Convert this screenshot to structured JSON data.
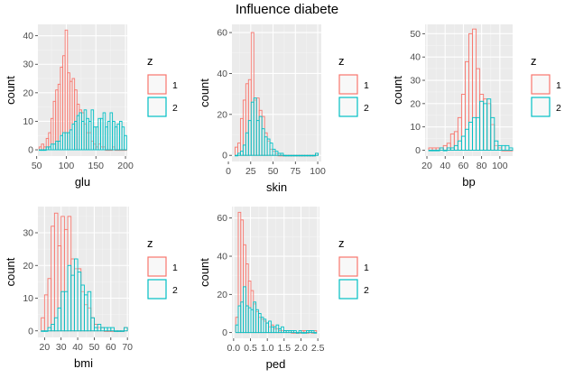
{
  "title": "Influence diabete",
  "colors": {
    "panel": "#EBEBEB",
    "grid_major": "#FFFFFF",
    "grid_minor": "#F4F4F4",
    "z1": "#F8766D",
    "z2": "#00BFC4",
    "legend_fill": "#F8F8F8",
    "tick_text": "#4D4D4D"
  },
  "chart_data": [
    {
      "type": "bar",
      "xlabel": "glu",
      "ylabel": "count",
      "legend": {
        "title": "z",
        "position": "right",
        "entries": [
          "1",
          "2"
        ]
      },
      "grid": true,
      "xlim": [
        52,
        203
      ],
      "ylim": [
        -2.2,
        44
      ],
      "xticks": [
        50,
        100,
        150,
        200
      ],
      "yticks": [
        0,
        10,
        20,
        30,
        40
      ],
      "x": [
        56,
        60,
        64,
        68,
        72,
        76,
        80,
        84,
        88,
        92,
        96,
        100,
        104,
        108,
        112,
        116,
        120,
        124,
        128,
        132,
        136,
        140,
        144,
        148,
        152,
        156,
        160,
        164,
        168,
        172,
        176,
        180,
        184,
        188,
        192,
        196,
        200
      ],
      "series": [
        {
          "name": "1",
          "values": [
            1,
            2,
            1,
            4,
            6,
            11,
            17,
            21,
            23,
            29,
            33,
            42,
            27,
            24,
            25,
            21,
            16,
            14,
            13,
            9,
            6,
            6,
            3,
            2,
            1,
            2,
            1,
            1,
            0,
            0,
            0,
            1,
            0,
            0,
            0,
            0,
            0
          ]
        },
        {
          "name": "2",
          "values": [
            0,
            0,
            0,
            1,
            1,
            2,
            2,
            3,
            3,
            5,
            6,
            6,
            6,
            7,
            9,
            10,
            12,
            13,
            10,
            14,
            11,
            10,
            14,
            8,
            8,
            11,
            11,
            13,
            8,
            10,
            13,
            10,
            8,
            9,
            10,
            8,
            5
          ]
        }
      ]
    },
    {
      "type": "bar",
      "xlabel": "skin",
      "ylabel": "count",
      "legend": {
        "title": "z",
        "position": "right",
        "entries": [
          "1",
          "2"
        ]
      },
      "grid": true,
      "xlim": [
        4,
        104
      ],
      "ylim": [
        -3,
        64
      ],
      "xticks": [
        0,
        25,
        50,
        75,
        100
      ],
      "yticks": [
        0,
        20,
        40,
        60
      ],
      "x": [
        9,
        12,
        15,
        18,
        21,
        24,
        27,
        30,
        33,
        36,
        39,
        42,
        45,
        48,
        51,
        54,
        57,
        60,
        63,
        66,
        69,
        72,
        75,
        78,
        81,
        84,
        87,
        90,
        93,
        96,
        99
      ],
      "series": [
        {
          "name": "1",
          "values": [
            4,
            6,
            18,
            27,
            35,
            37,
            60,
            27,
            28,
            22,
            19,
            11,
            7,
            3,
            2,
            1,
            0,
            0,
            0,
            0,
            0,
            0,
            0,
            0,
            0,
            0,
            0,
            0,
            0,
            0,
            1
          ]
        },
        {
          "name": "2",
          "values": [
            0,
            1,
            2,
            5,
            11,
            17,
            26,
            28,
            17,
            19,
            13,
            9,
            8,
            6,
            3,
            2,
            1,
            1,
            0,
            0,
            0,
            0,
            0,
            0,
            0,
            0,
            0,
            0,
            0,
            0,
            1
          ]
        }
      ]
    },
    {
      "type": "bar",
      "xlabel": "bp",
      "ylabel": "count",
      "legend": {
        "title": "z",
        "position": "right",
        "entries": [
          "1",
          "2"
        ]
      },
      "grid": true,
      "xlim": [
        18,
        114
      ],
      "ylim": [
        -2.5,
        54
      ],
      "xticks": [
        20,
        40,
        60,
        80,
        100
      ],
      "yticks": [
        0,
        10,
        20,
        30,
        40,
        50
      ],
      "x": [
        24,
        28,
        32,
        36,
        40,
        44,
        48,
        52,
        56,
        60,
        64,
        68,
        72,
        76,
        80,
        84,
        88,
        92,
        96,
        100,
        104,
        108,
        112
      ],
      "series": [
        {
          "name": "1",
          "values": [
            1,
            1,
            1,
            1,
            2,
            3,
            7,
            8,
            14,
            24,
            38,
            50,
            52,
            35,
            24,
            22,
            20,
            11,
            2,
            1,
            0,
            0,
            0
          ]
        },
        {
          "name": "2",
          "values": [
            0,
            0,
            0,
            1,
            0,
            1,
            1,
            2,
            4,
            6,
            9,
            12,
            14,
            14,
            21,
            20,
            22,
            14,
            4,
            2,
            2,
            2,
            1
          ]
        }
      ]
    },
    {
      "type": "bar",
      "xlabel": "bmi",
      "ylabel": "count",
      "legend": {
        "title": "z",
        "position": "right",
        "entries": [
          "1",
          "2"
        ]
      },
      "grid": true,
      "xlim": [
        16,
        71
      ],
      "ylim": [
        -2,
        38
      ],
      "xticks": [
        20,
        30,
        40,
        50,
        60,
        70
      ],
      "yticks": [
        0,
        10,
        20,
        30
      ],
      "x": [
        19,
        21,
        23,
        25,
        27,
        29,
        31,
        33,
        35,
        37,
        39,
        41,
        43,
        45,
        47,
        49,
        51,
        53,
        55,
        57,
        59,
        61,
        63,
        65,
        67,
        69
      ],
      "series": [
        {
          "name": "1",
          "values": [
            4,
            11,
            16,
            32,
            36,
            26,
            35,
            31,
            35,
            22,
            19,
            19,
            12,
            8,
            7,
            4,
            2,
            1,
            1,
            0,
            0,
            0,
            0,
            0,
            0,
            1
          ]
        },
        {
          "name": "2",
          "values": [
            0,
            0,
            1,
            2,
            4,
            7,
            12,
            12,
            20,
            17,
            22,
            18,
            14,
            11,
            12,
            4,
            1,
            2,
            1,
            1,
            1,
            1,
            0,
            0,
            0,
            1
          ]
        }
      ]
    },
    {
      "type": "bar",
      "xlabel": "ped",
      "ylabel": "count",
      "legend": {
        "title": "z",
        "position": "right",
        "entries": [
          "1",
          "2"
        ]
      },
      "grid": true,
      "xlim": [
        -0.05,
        2.55
      ],
      "ylim": [
        -3,
        66
      ],
      "xticks": [
        0.0,
        0.5,
        1.0,
        1.5,
        2.0,
        2.5
      ],
      "xticklabels": [
        "0.0",
        "0.5",
        "1.0",
        "1.5",
        "2.0",
        "2.5"
      ],
      "yticks": [
        0,
        20,
        40,
        60
      ],
      "x": [
        0.1,
        0.175,
        0.25,
        0.325,
        0.4,
        0.475,
        0.55,
        0.625,
        0.7,
        0.775,
        0.85,
        0.925,
        1.0,
        1.075,
        1.15,
        1.225,
        1.3,
        1.375,
        1.45,
        1.525,
        1.6,
        1.675,
        1.75,
        1.825,
        1.9,
        1.975,
        2.05,
        2.125,
        2.2,
        2.275,
        2.35,
        2.425
      ],
      "series": [
        {
          "name": "1",
          "values": [
            8,
            63,
            59,
            46,
            36,
            27,
            22,
            15,
            11,
            8,
            7,
            6,
            5,
            3,
            4,
            2,
            2,
            1,
            1,
            1,
            1,
            1,
            0,
            0,
            0,
            0,
            1,
            1,
            0,
            1,
            0,
            1
          ]
        },
        {
          "name": "2",
          "values": [
            4,
            14,
            16,
            24,
            14,
            13,
            12,
            16,
            12,
            10,
            8,
            7,
            5,
            6,
            3,
            3,
            4,
            2,
            3,
            1,
            1,
            1,
            1,
            1,
            0,
            1,
            0,
            0,
            1,
            1,
            1,
            0
          ]
        }
      ]
    }
  ]
}
